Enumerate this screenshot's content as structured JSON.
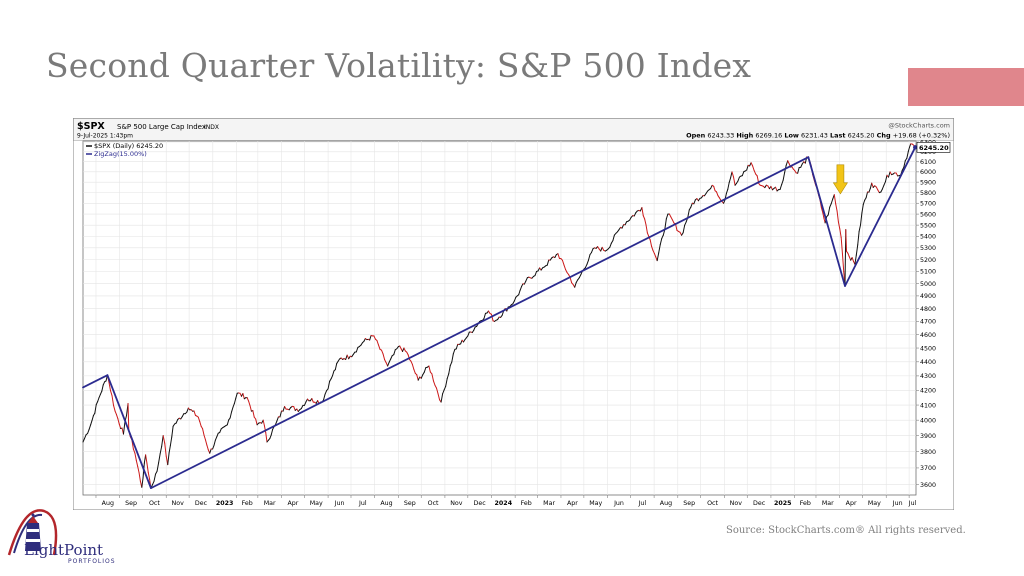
{
  "slide": {
    "title": "Second Quarter Volatility: S&P 500 Index",
    "source": "Source: StockCharts.com® All rights reserved.",
    "logo_main": "LightPoint",
    "logo_sub": "PORTFOLIOS"
  },
  "colors": {
    "accent_bar": "#e0868c",
    "price_up": "#111111",
    "price_down": "#cc1a1a",
    "zigzag": "#2b2b8f",
    "arrow": "#f2c417",
    "logo_navy": "#2f2d7c",
    "logo_red": "#b3262b"
  },
  "chart_data": {
    "type": "line",
    "symbol": "$SPX",
    "name": "S&P 500 Large Cap Index",
    "exchange": "INDX",
    "date_time": "9-Jul-2025 1:43pm",
    "watermark": "@StockCharts.com",
    "quote": {
      "open_label": "Open",
      "open": "6243.33",
      "high_label": "High",
      "high": "6269.16",
      "low_label": "Low",
      "low": "6231.43",
      "last_label": "Last",
      "last": "6245.20",
      "chg_label": "Chg",
      "chg": "+19.68 (+0.32%)"
    },
    "legend": [
      "$SPX (Daily) 6245.20",
      "ZigZag(15.00%)"
    ],
    "last_value_label": "6245.20",
    "y_scale": "log",
    "ylim": [
      3540,
      6310
    ],
    "y_ticks": [
      3600,
      3700,
      3800,
      3900,
      4000,
      4100,
      4200,
      4300,
      4400,
      4500,
      4600,
      4700,
      4800,
      4900,
      5000,
      5100,
      5200,
      5300,
      5400,
      5500,
      5600,
      5700,
      5800,
      5900,
      6000,
      6100,
      6200,
      6300
    ],
    "x_range": [
      "2022-07-15",
      "2025-07-10"
    ],
    "x_ticks": [
      {
        "date": "2022-08-01",
        "label": "Aug"
      },
      {
        "date": "2022-09-01",
        "label": "Sep"
      },
      {
        "date": "2022-10-01",
        "label": "Oct"
      },
      {
        "date": "2022-11-01",
        "label": "Nov"
      },
      {
        "date": "2022-12-01",
        "label": "Dec"
      },
      {
        "date": "2023-01-01",
        "label": "2023",
        "bold": true
      },
      {
        "date": "2023-02-01",
        "label": "Feb"
      },
      {
        "date": "2023-03-01",
        "label": "Mar"
      },
      {
        "date": "2023-04-01",
        "label": "Apr"
      },
      {
        "date": "2023-05-01",
        "label": "May"
      },
      {
        "date": "2023-06-01",
        "label": "Jun"
      },
      {
        "date": "2023-07-01",
        "label": "Jul"
      },
      {
        "date": "2023-08-01",
        "label": "Aug"
      },
      {
        "date": "2023-09-01",
        "label": "Sep"
      },
      {
        "date": "2023-10-01",
        "label": "Oct"
      },
      {
        "date": "2023-11-01",
        "label": "Nov"
      },
      {
        "date": "2023-12-01",
        "label": "Dec"
      },
      {
        "date": "2024-01-01",
        "label": "2024",
        "bold": true
      },
      {
        "date": "2024-02-01",
        "label": "Feb"
      },
      {
        "date": "2024-03-01",
        "label": "Mar"
      },
      {
        "date": "2024-04-01",
        "label": "Apr"
      },
      {
        "date": "2024-05-01",
        "label": "May"
      },
      {
        "date": "2024-06-01",
        "label": "Jun"
      },
      {
        "date": "2024-07-01",
        "label": "Jul"
      },
      {
        "date": "2024-08-01",
        "label": "Aug"
      },
      {
        "date": "2024-09-01",
        "label": "Sep"
      },
      {
        "date": "2024-10-01",
        "label": "Oct"
      },
      {
        "date": "2024-11-01",
        "label": "Nov"
      },
      {
        "date": "2024-12-01",
        "label": "Dec"
      },
      {
        "date": "2025-01-01",
        "label": "2025",
        "bold": true
      },
      {
        "date": "2025-02-01",
        "label": "Feb"
      },
      {
        "date": "2025-03-01",
        "label": "Mar"
      },
      {
        "date": "2025-04-01",
        "label": "Apr"
      },
      {
        "date": "2025-05-01",
        "label": "May"
      },
      {
        "date": "2025-06-01",
        "label": "Jun"
      },
      {
        "date": "2025-07-01",
        "label": "Jul"
      }
    ],
    "series": [
      {
        "name": "$SPX (Daily)",
        "points": [
          [
            "2022-07-15",
            3860
          ],
          [
            "2022-07-25",
            3970
          ],
          [
            "2022-08-05",
            4150
          ],
          [
            "2022-08-16",
            4305
          ],
          [
            "2022-08-26",
            4060
          ],
          [
            "2022-09-06",
            3910
          ],
          [
            "2022-09-12",
            4110
          ],
          [
            "2022-09-13",
            3930
          ],
          [
            "2022-09-21",
            3790
          ],
          [
            "2022-09-30",
            3585
          ],
          [
            "2022-10-05",
            3780
          ],
          [
            "2022-10-12",
            3580
          ],
          [
            "2022-10-20",
            3680
          ],
          [
            "2022-10-28",
            3900
          ],
          [
            "2022-11-03",
            3720
          ],
          [
            "2022-11-10",
            3960
          ],
          [
            "2022-11-30",
            4080
          ],
          [
            "2022-12-13",
            4020
          ],
          [
            "2022-12-28",
            3790
          ],
          [
            "2023-01-10",
            3920
          ],
          [
            "2023-01-20",
            3970
          ],
          [
            "2023-02-02",
            4180
          ],
          [
            "2023-02-15",
            4150
          ],
          [
            "2023-02-28",
            3970
          ],
          [
            "2023-03-08",
            4000
          ],
          [
            "2023-03-13",
            3860
          ],
          [
            "2023-03-24",
            3970
          ],
          [
            "2023-04-05",
            4090
          ],
          [
            "2023-04-25",
            4070
          ],
          [
            "2023-05-05",
            4140
          ],
          [
            "2023-05-24",
            4120
          ],
          [
            "2023-06-05",
            4280
          ],
          [
            "2023-06-16",
            4420
          ],
          [
            "2023-06-30",
            4440
          ],
          [
            "2023-07-18",
            4550
          ],
          [
            "2023-07-31",
            4590
          ],
          [
            "2023-08-18",
            4370
          ],
          [
            "2023-09-01",
            4510
          ],
          [
            "2023-09-12",
            4470
          ],
          [
            "2023-09-27",
            4270
          ],
          [
            "2023-10-11",
            4370
          ],
          [
            "2023-10-27",
            4120
          ],
          [
            "2023-11-14",
            4490
          ],
          [
            "2023-12-01",
            4590
          ],
          [
            "2023-12-28",
            4780
          ],
          [
            "2024-01-05",
            4700
          ],
          [
            "2024-01-31",
            4860
          ],
          [
            "2024-02-15",
            5020
          ],
          [
            "2024-03-08",
            5130
          ],
          [
            "2024-03-28",
            5250
          ],
          [
            "2024-04-19",
            4970
          ],
          [
            "2024-05-15",
            5300
          ],
          [
            "2024-05-31",
            5280
          ],
          [
            "2024-06-18",
            5480
          ],
          [
            "2024-07-16",
            5660
          ],
          [
            "2024-07-25",
            5400
          ],
          [
            "2024-08-05",
            5190
          ],
          [
            "2024-08-19",
            5600
          ],
          [
            "2024-09-06",
            5410
          ],
          [
            "2024-09-20",
            5700
          ],
          [
            "2024-10-18",
            5860
          ],
          [
            "2024-10-31",
            5700
          ],
          [
            "2024-11-11",
            6000
          ],
          [
            "2024-11-15",
            5870
          ],
          [
            "2024-12-06",
            6090
          ],
          [
            "2024-12-18",
            5870
          ],
          [
            "2025-01-13",
            5830
          ],
          [
            "2025-01-23",
            6110
          ],
          [
            "2025-02-03",
            5990
          ],
          [
            "2025-02-19",
            6145
          ],
          [
            "2025-03-10",
            5610
          ],
          [
            "2025-03-13",
            5520
          ],
          [
            "2025-03-25",
            5780
          ],
          [
            "2025-04-03",
            5390
          ],
          [
            "2025-04-08",
            4980
          ],
          [
            "2025-04-09",
            5460
          ],
          [
            "2025-04-10",
            5270
          ],
          [
            "2025-04-21",
            5160
          ],
          [
            "2025-05-02",
            5690
          ],
          [
            "2025-05-13",
            5890
          ],
          [
            "2025-05-23",
            5800
          ],
          [
            "2025-06-06",
            6000
          ],
          [
            "2025-06-20",
            5970
          ],
          [
            "2025-06-30",
            6205
          ],
          [
            "2025-07-03",
            6280
          ],
          [
            "2025-07-09",
            6245
          ]
        ]
      },
      {
        "name": "ZigZag(15.00%)",
        "points": [
          [
            "2022-07-15",
            4220
          ],
          [
            "2022-08-16",
            4305
          ],
          [
            "2022-10-12",
            3580
          ],
          [
            "2025-02-19",
            6145
          ],
          [
            "2025-04-08",
            4980
          ],
          [
            "2025-07-09",
            6245
          ]
        ]
      }
    ],
    "annotations": [
      {
        "type": "arrow",
        "date": "2025-04-02",
        "value": 5760,
        "direction": "down"
      }
    ]
  }
}
